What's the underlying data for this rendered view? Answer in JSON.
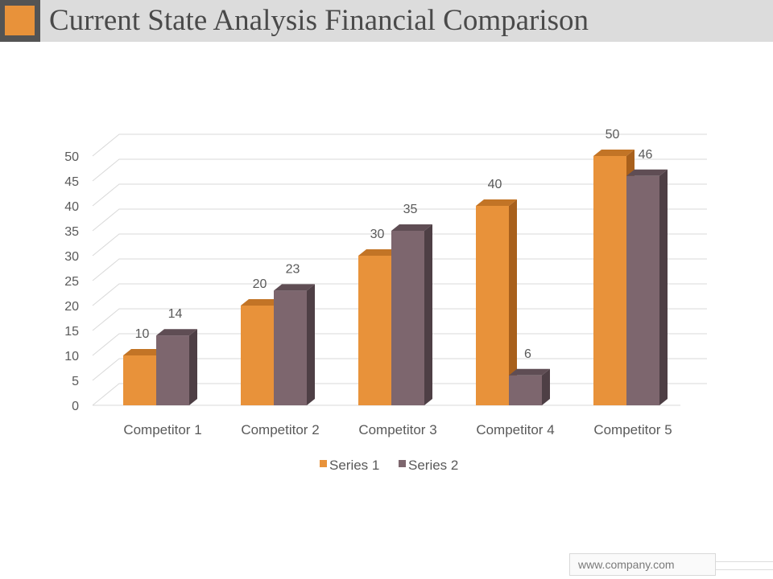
{
  "header": {
    "title": "Current State Analysis Financial Comparison"
  },
  "footer": {
    "website": "www.company.com"
  },
  "colors": {
    "series1": "#e8923a",
    "series1_side": "#a8601c",
    "series1_top": "#c27426",
    "series2": "#7d666e",
    "series2_side": "#4e3f45",
    "series2_top": "#5f4d54",
    "grid": "#d9d9d9",
    "text": "#595959"
  },
  "chart_data": {
    "type": "bar",
    "title": "",
    "categories": [
      "Competitor 1",
      "Competitor 2",
      "Competitor 3",
      "Competitor 4",
      "Competitor 5"
    ],
    "series": [
      {
        "name": "Series 1",
        "values": [
          10,
          20,
          30,
          40,
          50
        ]
      },
      {
        "name": "Series 2",
        "values": [
          14,
          23,
          35,
          6,
          46
        ]
      }
    ],
    "ylim": [
      0,
      50
    ],
    "yticks": [
      0,
      5,
      10,
      15,
      20,
      25,
      30,
      35,
      40,
      45,
      50
    ],
    "xlabel": "",
    "ylabel": "",
    "legend": "bottom",
    "grid": true,
    "style": "3d-clustered"
  }
}
